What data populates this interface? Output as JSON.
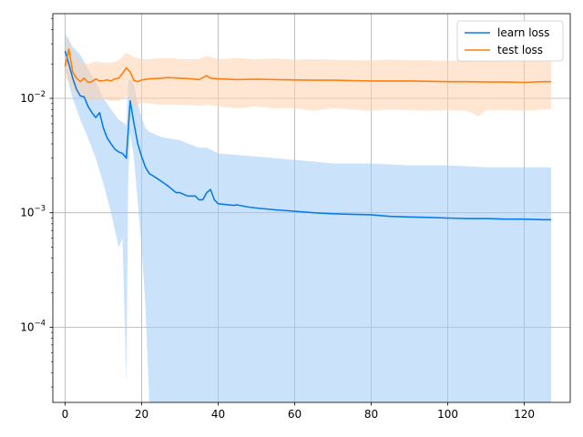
{
  "chart_data": {
    "type": "line",
    "title": "",
    "xlabel": "",
    "ylabel": "",
    "xlim": [
      -3.2,
      132
    ],
    "ylim": [
      2.2e-05,
      0.055
    ],
    "yscale": "log",
    "grid": true,
    "legend_position": "top-right",
    "x_ticks": [
      {
        "value": 0,
        "label": "0"
      },
      {
        "value": 20,
        "label": "20"
      },
      {
        "value": 40,
        "label": "40"
      },
      {
        "value": 60,
        "label": "60"
      },
      {
        "value": 80,
        "label": "80"
      },
      {
        "value": 100,
        "label": "100"
      },
      {
        "value": 120,
        "label": "120"
      }
    ],
    "y_ticks": [
      {
        "value": 0.0001,
        "base": "10",
        "exp": "−4"
      },
      {
        "value": 0.001,
        "base": "10",
        "exp": "−3"
      },
      {
        "value": 0.01,
        "base": "10",
        "exp": "−2"
      }
    ],
    "series": [
      {
        "name": "learn loss",
        "color": "#0a7cea",
        "band_color": "#9fcbf5",
        "points": [
          [
            0,
            0.026
          ],
          [
            1,
            0.02
          ],
          [
            2,
            0.015
          ],
          [
            3,
            0.012
          ],
          [
            4,
            0.0105
          ],
          [
            5,
            0.0103
          ],
          [
            6,
            0.0085
          ],
          [
            7,
            0.0075
          ],
          [
            8,
            0.0068
          ],
          [
            9,
            0.0075
          ],
          [
            10,
            0.0055
          ],
          [
            11,
            0.0045
          ],
          [
            12,
            0.004
          ],
          [
            13,
            0.0036
          ],
          [
            14,
            0.0034
          ],
          [
            15,
            0.0033
          ],
          [
            16,
            0.003
          ],
          [
            17,
            0.0095
          ],
          [
            18,
            0.006
          ],
          [
            19,
            0.004
          ],
          [
            20,
            0.0031
          ],
          [
            21,
            0.0025
          ],
          [
            22,
            0.0022
          ],
          [
            23,
            0.0021
          ],
          [
            24,
            0.002
          ],
          [
            25,
            0.0019
          ],
          [
            26,
            0.0018
          ],
          [
            27,
            0.0017
          ],
          [
            28,
            0.0016
          ],
          [
            29,
            0.0015
          ],
          [
            30,
            0.0015
          ],
          [
            32,
            0.0014
          ],
          [
            34,
            0.0014
          ],
          [
            35,
            0.0013
          ],
          [
            36,
            0.0013
          ],
          [
            37,
            0.0015
          ],
          [
            38,
            0.0016
          ],
          [
            39,
            0.0013
          ],
          [
            40,
            0.0012
          ],
          [
            42,
            0.00118
          ],
          [
            44,
            0.00116
          ],
          [
            45,
            0.00117
          ],
          [
            48,
            0.00112
          ],
          [
            50,
            0.0011
          ],
          [
            55,
            0.00106
          ],
          [
            60,
            0.00103
          ],
          [
            65,
            0.001
          ],
          [
            70,
            0.00098
          ],
          [
            75,
            0.00097
          ],
          [
            80,
            0.00096
          ],
          [
            85,
            0.00093
          ],
          [
            90,
            0.00092
          ],
          [
            95,
            0.00091
          ],
          [
            100,
            0.0009
          ],
          [
            105,
            0.00089
          ],
          [
            110,
            0.00089
          ],
          [
            115,
            0.00088
          ],
          [
            120,
            0.00088
          ],
          [
            125,
            0.00087
          ],
          [
            127,
            0.00087
          ]
        ],
        "band": [
          [
            0,
            0.037,
            0.018
          ],
          [
            2,
            0.028,
            0.01
          ],
          [
            4,
            0.024,
            0.0065
          ],
          [
            6,
            0.018,
            0.0045
          ],
          [
            8,
            0.014,
            0.003
          ],
          [
            10,
            0.01,
            0.0018
          ],
          [
            12,
            0.008,
            0.001
          ],
          [
            14,
            0.0065,
            0.0005
          ],
          [
            15,
            0.0062,
            0.0006
          ],
          [
            16,
            0.0058,
            3.2e-05
          ],
          [
            16.5,
            0.014,
            0.002
          ],
          [
            17,
            0.015,
            0.005
          ],
          [
            18,
            0.013,
            0.003
          ],
          [
            19,
            0.009,
            0.0012
          ],
          [
            20,
            0.0068,
            0.0005
          ],
          [
            21,
            0.0055,
            0.00015
          ],
          [
            22,
            0.0051,
            2.2e-05
          ],
          [
            25,
            0.0046,
            2.2e-05
          ],
          [
            30,
            0.0043,
            2.2e-05
          ],
          [
            35,
            0.0037,
            2.2e-05
          ],
          [
            37,
            0.0037,
            2.2e-05
          ],
          [
            40,
            0.0033,
            2.2e-05
          ],
          [
            45,
            0.0032,
            2.2e-05
          ],
          [
            50,
            0.0031,
            2.2e-05
          ],
          [
            55,
            0.003,
            2.2e-05
          ],
          [
            60,
            0.0029,
            2.2e-05
          ],
          [
            65,
            0.0028,
            2.2e-05
          ],
          [
            70,
            0.0027,
            2.2e-05
          ],
          [
            80,
            0.0027,
            2.2e-05
          ],
          [
            90,
            0.0026,
            2.2e-05
          ],
          [
            100,
            0.0026,
            2.2e-05
          ],
          [
            110,
            0.0025,
            2.2e-05
          ],
          [
            120,
            0.0025,
            2.2e-05
          ],
          [
            127,
            0.0025,
            2.2e-05
          ]
        ]
      },
      {
        "name": "test loss",
        "color": "#ff7f0e",
        "band_color": "#ffd2ad",
        "points": [
          [
            0,
            0.019
          ],
          [
            1,
            0.027
          ],
          [
            2,
            0.017
          ],
          [
            3,
            0.015
          ],
          [
            4,
            0.014
          ],
          [
            5,
            0.015
          ],
          [
            6,
            0.0138
          ],
          [
            7,
            0.014
          ],
          [
            8,
            0.0148
          ],
          [
            9,
            0.0142
          ],
          [
            10,
            0.0143
          ],
          [
            11,
            0.0145
          ],
          [
            12,
            0.0142
          ],
          [
            13,
            0.0148
          ],
          [
            14,
            0.015
          ],
          [
            15,
            0.0165
          ],
          [
            16,
            0.0185
          ],
          [
            17,
            0.017
          ],
          [
            18,
            0.0143
          ],
          [
            19,
            0.014
          ],
          [
            20,
            0.0145
          ],
          [
            22,
            0.0148
          ],
          [
            25,
            0.015
          ],
          [
            27,
            0.0152
          ],
          [
            30,
            0.015
          ],
          [
            33,
            0.0148
          ],
          [
            35,
            0.0146
          ],
          [
            37,
            0.0158
          ],
          [
            38,
            0.015
          ],
          [
            40,
            0.0148
          ],
          [
            45,
            0.0146
          ],
          [
            50,
            0.0147
          ],
          [
            55,
            0.0146
          ],
          [
            60,
            0.0145
          ],
          [
            65,
            0.0144
          ],
          [
            70,
            0.0144
          ],
          [
            75,
            0.0143
          ],
          [
            80,
            0.0142
          ],
          [
            85,
            0.0142
          ],
          [
            90,
            0.0142
          ],
          [
            95,
            0.0141
          ],
          [
            100,
            0.014
          ],
          [
            105,
            0.014
          ],
          [
            110,
            0.0139
          ],
          [
            115,
            0.0139
          ],
          [
            120,
            0.0138
          ],
          [
            125,
            0.014
          ],
          [
            127,
            0.014
          ]
        ],
        "band": [
          [
            0,
            0.025,
            0.015
          ],
          [
            1,
            0.035,
            0.014
          ],
          [
            2,
            0.025,
            0.0115
          ],
          [
            4,
            0.021,
            0.0105
          ],
          [
            6,
            0.02,
            0.0095
          ],
          [
            8,
            0.021,
            0.0098
          ],
          [
            10,
            0.0205,
            0.0098
          ],
          [
            12,
            0.0205,
            0.0095
          ],
          [
            14,
            0.0215,
            0.0095
          ],
          [
            16,
            0.025,
            0.0105
          ],
          [
            18,
            0.023,
            0.0085
          ],
          [
            20,
            0.022,
            0.0092
          ],
          [
            22,
            0.022,
            0.009
          ],
          [
            25,
            0.0225,
            0.0088
          ],
          [
            28,
            0.0225,
            0.0088
          ],
          [
            30,
            0.022,
            0.0088
          ],
          [
            35,
            0.022,
            0.0086
          ],
          [
            37,
            0.0235,
            0.0088
          ],
          [
            40,
            0.022,
            0.0085
          ],
          [
            45,
            0.0225,
            0.0082
          ],
          [
            50,
            0.022,
            0.0085
          ],
          [
            55,
            0.0223,
            0.0082
          ],
          [
            60,
            0.0218,
            0.0082
          ],
          [
            65,
            0.022,
            0.0078
          ],
          [
            70,
            0.0218,
            0.0082
          ],
          [
            75,
            0.0215,
            0.008
          ],
          [
            80,
            0.0215,
            0.0078
          ],
          [
            85,
            0.0218,
            0.008
          ],
          [
            90,
            0.0215,
            0.0079
          ],
          [
            95,
            0.0215,
            0.0078
          ],
          [
            100,
            0.0213,
            0.0079
          ],
          [
            105,
            0.0215,
            0.0078
          ],
          [
            108,
            0.021,
            0.007
          ],
          [
            110,
            0.0212,
            0.0079
          ],
          [
            115,
            0.021,
            0.0079
          ],
          [
            120,
            0.021,
            0.0078
          ],
          [
            125,
            0.021,
            0.008
          ],
          [
            127,
            0.021,
            0.008
          ]
        ]
      }
    ]
  }
}
